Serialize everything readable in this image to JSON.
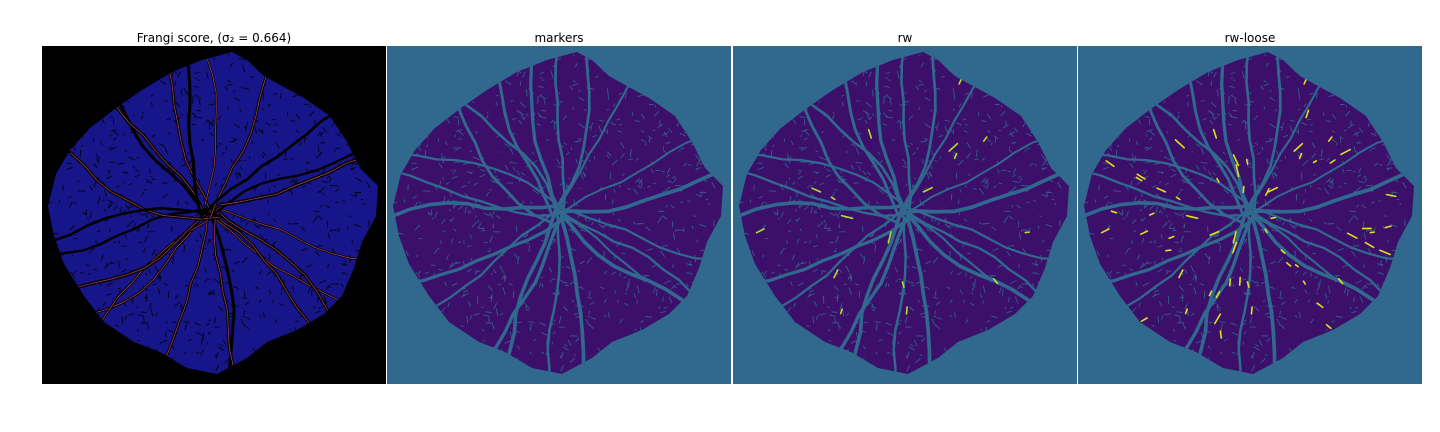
{
  "figure": {
    "panels": [
      {
        "title": "Frangi score, (σ₂ = 0.664)",
        "background": "#000000",
        "fill": "#16168a",
        "vessel": "#000000",
        "accent": "#e05a70",
        "highlight_count": 0
      },
      {
        "title": "markers",
        "background": "#31688e",
        "fill": "#3b0f6a",
        "vessel": "#31688e",
        "accent": "#31688e",
        "highlight_count": 0
      },
      {
        "title": "rw",
        "background": "#31688e",
        "fill": "#3b0f6a",
        "vessel": "#31688e",
        "accent": "#b5de2b",
        "highlight_count": 18
      },
      {
        "title": "rw-loose",
        "background": "#31688e",
        "fill": "#3b0f6a",
        "vessel": "#31688e",
        "accent": "#dde318",
        "highlight_count": 60
      }
    ]
  }
}
